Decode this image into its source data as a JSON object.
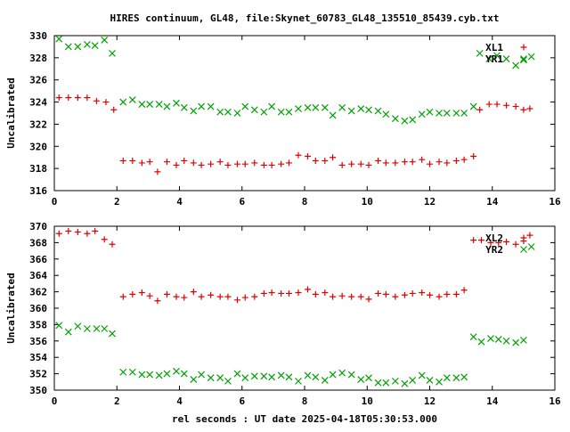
{
  "title": "HIRES continuum, GL48, file:Skynet_60783_GL48_135510_85439.cyb.txt",
  "xlabel": "rel seconds : UT date 2025-04-18T05:30:53.000",
  "colors": {
    "plus": "#e00000",
    "x": "#00a000"
  },
  "chart_data": [
    {
      "type": "scatter",
      "ylabel": "Uncalibrated",
      "xlim": [
        0,
        16
      ],
      "ylim": [
        316,
        330
      ],
      "xticks": [
        0,
        2,
        4,
        6,
        8,
        10,
        12,
        14,
        16
      ],
      "yticks": [
        316,
        318,
        320,
        322,
        324,
        326,
        328,
        330
      ],
      "legend_position": "top-right",
      "series": [
        {
          "name": "XL1",
          "marker": "plus",
          "color": "#e00000",
          "points": [
            [
              0.15,
              324.4
            ],
            [
              0.45,
              324.4
            ],
            [
              0.75,
              324.4
            ],
            [
              1.05,
              324.4
            ],
            [
              1.35,
              324.1
            ],
            [
              1.65,
              324.0
            ],
            [
              1.9,
              323.3
            ],
            [
              2.2,
              318.7
            ],
            [
              2.5,
              318.7
            ],
            [
              2.8,
              318.5
            ],
            [
              3.05,
              318.6
            ],
            [
              3.3,
              317.7
            ],
            [
              3.6,
              318.6
            ],
            [
              3.9,
              318.3
            ],
            [
              4.15,
              318.7
            ],
            [
              4.45,
              318.5
            ],
            [
              4.7,
              318.3
            ],
            [
              5.0,
              318.4
            ],
            [
              5.3,
              318.6
            ],
            [
              5.55,
              318.3
            ],
            [
              5.85,
              318.4
            ],
            [
              6.1,
              318.4
            ],
            [
              6.4,
              318.5
            ],
            [
              6.7,
              318.3
            ],
            [
              6.95,
              318.3
            ],
            [
              7.25,
              318.4
            ],
            [
              7.5,
              318.5
            ],
            [
              7.8,
              319.2
            ],
            [
              8.1,
              319.1
            ],
            [
              8.35,
              318.7
            ],
            [
              8.65,
              318.7
            ],
            [
              8.9,
              319.0
            ],
            [
              9.2,
              318.3
            ],
            [
              9.5,
              318.4
            ],
            [
              9.8,
              318.4
            ],
            [
              10.05,
              318.3
            ],
            [
              10.35,
              318.7
            ],
            [
              10.6,
              318.5
            ],
            [
              10.9,
              318.5
            ],
            [
              11.2,
              318.6
            ],
            [
              11.45,
              318.6
            ],
            [
              11.75,
              318.8
            ],
            [
              12.0,
              318.4
            ],
            [
              12.3,
              318.6
            ],
            [
              12.55,
              318.5
            ],
            [
              12.85,
              318.7
            ],
            [
              13.1,
              318.8
            ],
            [
              13.4,
              319.1
            ],
            [
              13.6,
              323.3
            ],
            [
              13.9,
              323.8
            ],
            [
              14.15,
              323.8
            ],
            [
              14.45,
              323.7
            ],
            [
              14.75,
              323.6
            ],
            [
              15.0,
              323.3
            ],
            [
              15.2,
              323.4
            ]
          ]
        },
        {
          "name": "YR1",
          "marker": "x",
          "color": "#00a000",
          "points": [
            [
              0.15,
              329.7
            ],
            [
              0.45,
              329.0
            ],
            [
              0.75,
              329.0
            ],
            [
              1.05,
              329.2
            ],
            [
              1.3,
              329.1
            ],
            [
              1.6,
              329.6
            ],
            [
              1.85,
              328.4
            ],
            [
              2.2,
              324.0
            ],
            [
              2.5,
              324.2
            ],
            [
              2.8,
              323.8
            ],
            [
              3.05,
              323.8
            ],
            [
              3.35,
              323.8
            ],
            [
              3.6,
              323.6
            ],
            [
              3.9,
              323.9
            ],
            [
              4.15,
              323.5
            ],
            [
              4.45,
              323.2
            ],
            [
              4.7,
              323.6
            ],
            [
              5.0,
              323.6
            ],
            [
              5.3,
              323.1
            ],
            [
              5.55,
              323.1
            ],
            [
              5.85,
              323.0
            ],
            [
              6.1,
              323.6
            ],
            [
              6.4,
              323.3
            ],
            [
              6.7,
              323.1
            ],
            [
              6.95,
              323.6
            ],
            [
              7.25,
              323.1
            ],
            [
              7.5,
              323.1
            ],
            [
              7.8,
              323.4
            ],
            [
              8.1,
              323.5
            ],
            [
              8.35,
              323.5
            ],
            [
              8.65,
              323.5
            ],
            [
              8.9,
              322.8
            ],
            [
              9.2,
              323.5
            ],
            [
              9.5,
              323.2
            ],
            [
              9.8,
              323.4
            ],
            [
              10.05,
              323.3
            ],
            [
              10.35,
              323.2
            ],
            [
              10.6,
              322.9
            ],
            [
              10.9,
              322.5
            ],
            [
              11.2,
              322.3
            ],
            [
              11.45,
              322.4
            ],
            [
              11.75,
              322.9
            ],
            [
              12.0,
              323.1
            ],
            [
              12.3,
              323.0
            ],
            [
              12.55,
              323.0
            ],
            [
              12.85,
              323.0
            ],
            [
              13.1,
              323.0
            ],
            [
              13.4,
              323.6
            ],
            [
              13.6,
              328.4
            ],
            [
              13.9,
              327.9
            ],
            [
              14.15,
              328.2
            ],
            [
              14.45,
              327.9
            ],
            [
              14.75,
              327.3
            ],
            [
              15.0,
              327.8
            ],
            [
              15.25,
              328.1
            ]
          ]
        }
      ]
    },
    {
      "type": "scatter",
      "ylabel": "Uncalibrated",
      "xlim": [
        0,
        16
      ],
      "ylim": [
        350,
        370
      ],
      "xticks": [
        0,
        2,
        4,
        6,
        8,
        10,
        12,
        14,
        16
      ],
      "yticks": [
        350,
        352,
        354,
        356,
        358,
        360,
        362,
        364,
        366,
        368,
        370
      ],
      "legend_position": "top-right",
      "series": [
        {
          "name": "XL2",
          "marker": "plus",
          "color": "#e00000",
          "points": [
            [
              0.15,
              369.1
            ],
            [
              0.45,
              369.4
            ],
            [
              0.75,
              369.3
            ],
            [
              1.05,
              369.1
            ],
            [
              1.3,
              369.4
            ],
            [
              1.6,
              368.4
            ],
            [
              1.85,
              367.8
            ],
            [
              2.2,
              361.4
            ],
            [
              2.5,
              361.7
            ],
            [
              2.8,
              361.9
            ],
            [
              3.05,
              361.5
            ],
            [
              3.3,
              360.9
            ],
            [
              3.6,
              361.7
            ],
            [
              3.9,
              361.4
            ],
            [
              4.15,
              361.3
            ],
            [
              4.45,
              362.0
            ],
            [
              4.7,
              361.4
            ],
            [
              5.0,
              361.6
            ],
            [
              5.3,
              361.4
            ],
            [
              5.55,
              361.4
            ],
            [
              5.85,
              361.0
            ],
            [
              6.1,
              361.3
            ],
            [
              6.4,
              361.4
            ],
            [
              6.7,
              361.8
            ],
            [
              6.95,
              361.9
            ],
            [
              7.25,
              361.8
            ],
            [
              7.5,
              361.8
            ],
            [
              7.8,
              361.9
            ],
            [
              8.1,
              362.3
            ],
            [
              8.35,
              361.7
            ],
            [
              8.65,
              361.9
            ],
            [
              8.9,
              361.4
            ],
            [
              9.2,
              361.5
            ],
            [
              9.5,
              361.4
            ],
            [
              9.8,
              361.4
            ],
            [
              10.05,
              361.1
            ],
            [
              10.35,
              361.8
            ],
            [
              10.6,
              361.7
            ],
            [
              10.9,
              361.4
            ],
            [
              11.2,
              361.6
            ],
            [
              11.45,
              361.8
            ],
            [
              11.75,
              361.9
            ],
            [
              12.0,
              361.6
            ],
            [
              12.3,
              361.4
            ],
            [
              12.55,
              361.7
            ],
            [
              12.85,
              361.7
            ],
            [
              13.1,
              362.2
            ],
            [
              13.4,
              368.3
            ],
            [
              13.65,
              368.3
            ],
            [
              13.95,
              368.0
            ],
            [
              14.2,
              368.0
            ],
            [
              14.45,
              368.1
            ],
            [
              14.75,
              367.8
            ],
            [
              15.0,
              368.2
            ],
            [
              15.2,
              368.9
            ]
          ]
        },
        {
          "name": "YR2",
          "marker": "x",
          "color": "#00a000",
          "points": [
            [
              0.15,
              357.9
            ],
            [
              0.45,
              357.1
            ],
            [
              0.75,
              357.8
            ],
            [
              1.05,
              357.5
            ],
            [
              1.35,
              357.5
            ],
            [
              1.6,
              357.5
            ],
            [
              1.85,
              356.9
            ],
            [
              2.2,
              352.2
            ],
            [
              2.5,
              352.2
            ],
            [
              2.8,
              351.9
            ],
            [
              3.05,
              351.9
            ],
            [
              3.35,
              351.8
            ],
            [
              3.6,
              352.0
            ],
            [
              3.9,
              352.3
            ],
            [
              4.15,
              352.0
            ],
            [
              4.45,
              351.3
            ],
            [
              4.7,
              351.9
            ],
            [
              5.0,
              351.5
            ],
            [
              5.3,
              351.5
            ],
            [
              5.55,
              351.1
            ],
            [
              5.85,
              352.0
            ],
            [
              6.1,
              351.5
            ],
            [
              6.4,
              351.7
            ],
            [
              6.7,
              351.7
            ],
            [
              6.95,
              351.6
            ],
            [
              7.25,
              351.8
            ],
            [
              7.5,
              351.6
            ],
            [
              7.8,
              351.1
            ],
            [
              8.1,
              351.8
            ],
            [
              8.35,
              351.6
            ],
            [
              8.65,
              351.2
            ],
            [
              8.9,
              351.9
            ],
            [
              9.2,
              352.1
            ],
            [
              9.5,
              351.9
            ],
            [
              9.8,
              351.3
            ],
            [
              10.05,
              351.5
            ],
            [
              10.35,
              350.9
            ],
            [
              10.6,
              350.9
            ],
            [
              10.9,
              351.1
            ],
            [
              11.2,
              350.8
            ],
            [
              11.45,
              351.2
            ],
            [
              11.75,
              351.8
            ],
            [
              12.0,
              351.2
            ],
            [
              12.3,
              351.0
            ],
            [
              12.55,
              351.5
            ],
            [
              12.85,
              351.5
            ],
            [
              13.1,
              351.6
            ],
            [
              13.4,
              356.5
            ],
            [
              13.65,
              355.9
            ],
            [
              13.95,
              356.3
            ],
            [
              14.2,
              356.2
            ],
            [
              14.45,
              356.0
            ],
            [
              14.75,
              355.8
            ],
            [
              15.0,
              356.1
            ],
            [
              15.25,
              367.5
            ]
          ]
        }
      ]
    }
  ]
}
